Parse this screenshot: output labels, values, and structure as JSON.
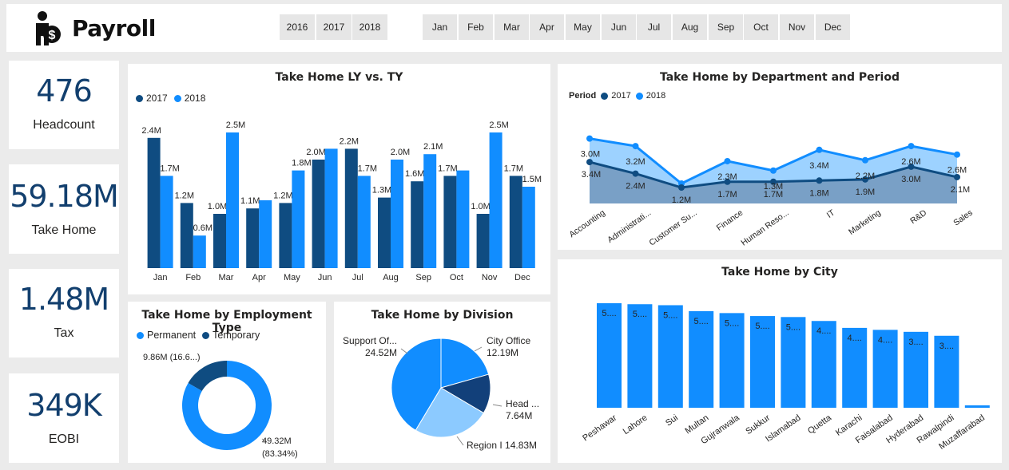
{
  "app": {
    "title": "Payroll",
    "logo_icon": "payroll-person-dollar-icon"
  },
  "colors": {
    "dark": "#0f4c81",
    "light": "#118dff",
    "kpi": "#123f6e",
    "pale": "#8ccaff"
  },
  "year_slicer": [
    "2016",
    "2017",
    "2018"
  ],
  "month_slicer": [
    "Jan",
    "Feb",
    "Mar",
    "Apr",
    "May",
    "Jun",
    "Jul",
    "Aug",
    "Sep",
    "Oct",
    "Nov",
    "Dec"
  ],
  "kpis": [
    {
      "value": "476",
      "label": "Headcount"
    },
    {
      "value": "59.18M",
      "label": "Take Home"
    },
    {
      "value": "1.48M",
      "label": "Tax"
    },
    {
      "value": "349K",
      "label": "EOBI"
    }
  ],
  "take_home_ly_ty": {
    "title": "Take Home LY vs. TY",
    "legend": [
      "2017",
      "2018"
    ],
    "chart_data": {
      "type": "bar",
      "categories": [
        "Jan",
        "Feb",
        "Mar",
        "Apr",
        "May",
        "Jun",
        "Jul",
        "Aug",
        "Sep",
        "Oct",
        "Nov",
        "Dec"
      ],
      "series": [
        {
          "name": "2017",
          "values": [
            2.4,
            1.2,
            1.0,
            1.1,
            1.2,
            2.0,
            2.2,
            1.3,
            1.6,
            1.7,
            1.0,
            1.7
          ],
          "labels": [
            "2.4M",
            "1.2M",
            "1.0M",
            "1.1M",
            "1.2M",
            "2.0M",
            "2.2M",
            "1.3M",
            "1.6M",
            "1.7M",
            "1.0M",
            "1.7M"
          ]
        },
        {
          "name": "2018",
          "values": [
            1.7,
            0.6,
            2.5,
            1.25,
            1.8,
            2.2,
            1.7,
            2.0,
            2.1,
            1.8,
            2.5,
            1.5
          ],
          "labels": [
            "1.7M",
            "0.6M",
            "2.5M",
            "",
            "1.8M",
            "",
            "1.7M",
            "2.0M",
            "2.1M",
            "",
            "2.5M",
            "1.5M"
          ]
        }
      ],
      "ylim": [
        0,
        2.5
      ]
    }
  },
  "take_home_dept": {
    "title": "Take Home by Department and Period",
    "legend_title": "Period",
    "legend": [
      "2017",
      "2018"
    ],
    "chart_data": {
      "type": "area",
      "categories": [
        "Accounting",
        "Administrati...",
        "Customer Su...",
        "Finance",
        "Human Reso...",
        "IT",
        "Marketing",
        "R&D",
        "Sales"
      ],
      "series": [
        {
          "name": "2017",
          "values": [
            3.4,
            2.4,
            1.2,
            1.7,
            1.7,
            1.8,
            1.9,
            3.0,
            2.1
          ],
          "labels": [
            "3.4M",
            "2.4M",
            "1.2M",
            "1.7M",
            "1.7M",
            "1.8M",
            "1.9M",
            "3.0M",
            "2.1M"
          ]
        },
        {
          "name": "2018",
          "values": [
            3.0,
            3.2,
            0.0,
            2.3,
            1.3,
            3.4,
            2.2,
            2.6,
            2.6
          ],
          "labels": [
            "3.0M",
            "3.2M",
            "",
            "2.3M",
            "1.3M",
            "3.4M",
            "2.2M",
            "2.6M",
            "2.6M"
          ]
        }
      ]
    }
  },
  "take_home_city": {
    "title": "Take Home by City",
    "chart_data": {
      "type": "bar",
      "categories": [
        "Peshawar",
        "Lahore",
        "Sui",
        "Multan",
        "Gujranwala",
        "Sukkur",
        "Islamabad",
        "Quetta",
        "Karachi",
        "Faisalabad",
        "Hyderabad",
        "Rawalpindi",
        "Muzaffarabad"
      ],
      "values": [
        5.3,
        5.25,
        5.2,
        4.9,
        4.8,
        4.65,
        4.6,
        4.4,
        4.05,
        3.95,
        3.85,
        3.65,
        0.1
      ],
      "labels": [
        "5....",
        "5....",
        "5....",
        "5....",
        "5....",
        "5....",
        "5....",
        "4....",
        "4....",
        "4....",
        "3....",
        "3....",
        ""
      ]
    }
  },
  "take_home_emp_type": {
    "title": "Take Home by Employment Type",
    "legend": [
      "Permanent",
      "Temporary"
    ],
    "chart_data": {
      "type": "pie",
      "categories": [
        "Permanent",
        "Temporary"
      ],
      "values": [
        49.32,
        9.86
      ],
      "labels": [
        [
          "49.32M",
          "(83.34%)"
        ],
        [
          "9.86M (16.6...)"
        ]
      ]
    }
  },
  "take_home_division": {
    "title": "Take Home by Division",
    "chart_data": {
      "type": "pie",
      "categories": [
        "City Office",
        "Head ...",
        "Region I",
        "Support Of..."
      ],
      "values": [
        12.19,
        7.64,
        14.83,
        24.52
      ],
      "labels": [
        [
          "City Office",
          "12.19M"
        ],
        [
          "Head ...",
          "7.64M"
        ],
        [
          "Region I 14.83M"
        ],
        [
          "Support Of...",
          "24.52M"
        ]
      ]
    }
  }
}
